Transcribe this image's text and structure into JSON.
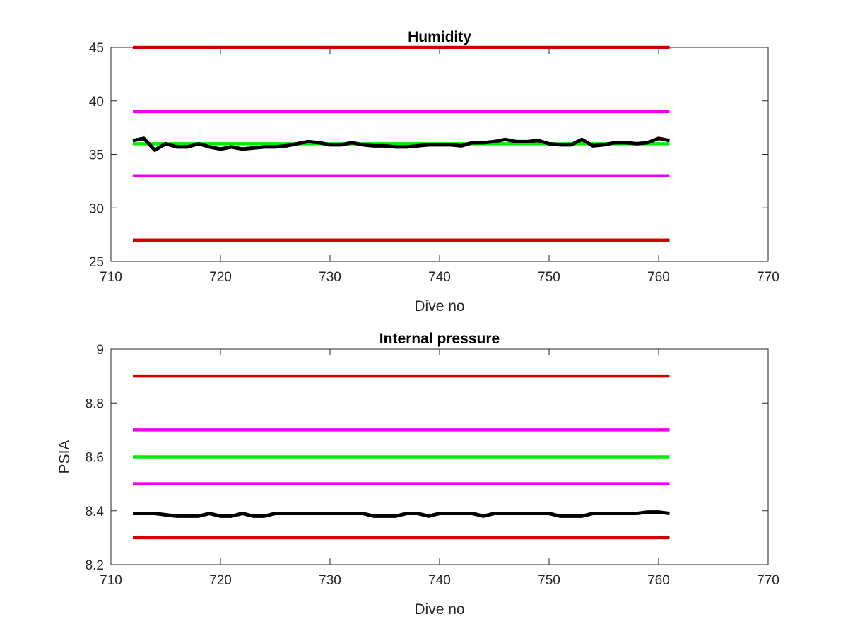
{
  "chart_data": [
    {
      "type": "line",
      "title": "Humidity",
      "xlabel": "Dive no",
      "ylabel": "",
      "xlim": [
        710,
        770
      ],
      "ylim": [
        25,
        45
      ],
      "xticks": [
        710,
        720,
        730,
        740,
        750,
        760,
        770
      ],
      "yticks": [
        25,
        30,
        35,
        40,
        45
      ],
      "grid": false,
      "series": [
        {
          "color": "#d40000",
          "style": "hline",
          "x": [
            712,
            761
          ],
          "y": [
            45,
            45
          ]
        },
        {
          "color": "#ee00ee",
          "style": "hline",
          "x": [
            712,
            761
          ],
          "y": [
            39,
            39
          ]
        },
        {
          "color": "#00ee00",
          "style": "hline",
          "x": [
            712,
            761
          ],
          "y": [
            36,
            36
          ]
        },
        {
          "color": "#ee00ee",
          "style": "hline",
          "x": [
            712,
            761
          ],
          "y": [
            33,
            33
          ]
        },
        {
          "color": "#d40000",
          "style": "hline",
          "x": [
            712,
            761
          ],
          "y": [
            27,
            27
          ]
        },
        {
          "color": "#000000",
          "style": "data",
          "x": [
            712,
            713,
            714,
            715,
            716,
            717,
            718,
            719,
            720,
            721,
            722,
            723,
            724,
            725,
            726,
            727,
            728,
            729,
            730,
            731,
            732,
            733,
            734,
            735,
            736,
            737,
            738,
            739,
            740,
            741,
            742,
            743,
            744,
            745,
            746,
            747,
            748,
            749,
            750,
            751,
            752,
            753,
            754,
            755,
            756,
            757,
            758,
            759,
            760,
            761
          ],
          "y": [
            36.3,
            36.5,
            35.4,
            36.0,
            35.7,
            35.7,
            36.0,
            35.7,
            35.5,
            35.7,
            35.5,
            35.6,
            35.7,
            35.7,
            35.8,
            36.0,
            36.2,
            36.1,
            35.9,
            35.9,
            36.1,
            35.9,
            35.8,
            35.8,
            35.7,
            35.7,
            35.8,
            35.9,
            35.9,
            35.9,
            35.8,
            36.1,
            36.1,
            36.2,
            36.4,
            36.2,
            36.2,
            36.3,
            36.0,
            35.9,
            35.9,
            36.4,
            35.8,
            35.9,
            36.1,
            36.1,
            36.0,
            36.1,
            36.5,
            36.3
          ]
        }
      ]
    },
    {
      "type": "line",
      "title": "Internal pressure",
      "xlabel": "Dive no",
      "ylabel": "PSIA",
      "xlim": [
        710,
        770
      ],
      "ylim": [
        8.2,
        9
      ],
      "xticks": [
        710,
        720,
        730,
        740,
        750,
        760,
        770
      ],
      "yticks": [
        8.2,
        8.4,
        8.6,
        8.8,
        9
      ],
      "grid": false,
      "series": [
        {
          "color": "#d40000",
          "style": "hline",
          "x": [
            712,
            761
          ],
          "y": [
            8.9,
            8.9
          ]
        },
        {
          "color": "#ee00ee",
          "style": "hline",
          "x": [
            712,
            761
          ],
          "y": [
            8.7,
            8.7
          ]
        },
        {
          "color": "#00ee00",
          "style": "hline",
          "x": [
            712,
            761
          ],
          "y": [
            8.6,
            8.6
          ]
        },
        {
          "color": "#ee00ee",
          "style": "hline",
          "x": [
            712,
            761
          ],
          "y": [
            8.5,
            8.5
          ]
        },
        {
          "color": "#d40000",
          "style": "hline",
          "x": [
            712,
            761
          ],
          "y": [
            8.3,
            8.3
          ]
        },
        {
          "color": "#000000",
          "style": "data",
          "x": [
            712,
            713,
            714,
            715,
            716,
            717,
            718,
            719,
            720,
            721,
            722,
            723,
            724,
            725,
            726,
            727,
            728,
            729,
            730,
            731,
            732,
            733,
            734,
            735,
            736,
            737,
            738,
            739,
            740,
            741,
            742,
            743,
            744,
            745,
            746,
            747,
            748,
            749,
            750,
            751,
            752,
            753,
            754,
            755,
            756,
            757,
            758,
            759,
            760,
            761
          ],
          "y": [
            8.39,
            8.39,
            8.39,
            8.385,
            8.38,
            8.38,
            8.38,
            8.39,
            8.38,
            8.38,
            8.39,
            8.38,
            8.38,
            8.39,
            8.39,
            8.39,
            8.39,
            8.39,
            8.39,
            8.39,
            8.39,
            8.39,
            8.38,
            8.38,
            8.38,
            8.39,
            8.39,
            8.38,
            8.39,
            8.39,
            8.39,
            8.39,
            8.38,
            8.39,
            8.39,
            8.39,
            8.39,
            8.39,
            8.39,
            8.38,
            8.38,
            8.38,
            8.39,
            8.39,
            8.39,
            8.39,
            8.39,
            8.395,
            8.395,
            8.39
          ]
        }
      ]
    }
  ]
}
